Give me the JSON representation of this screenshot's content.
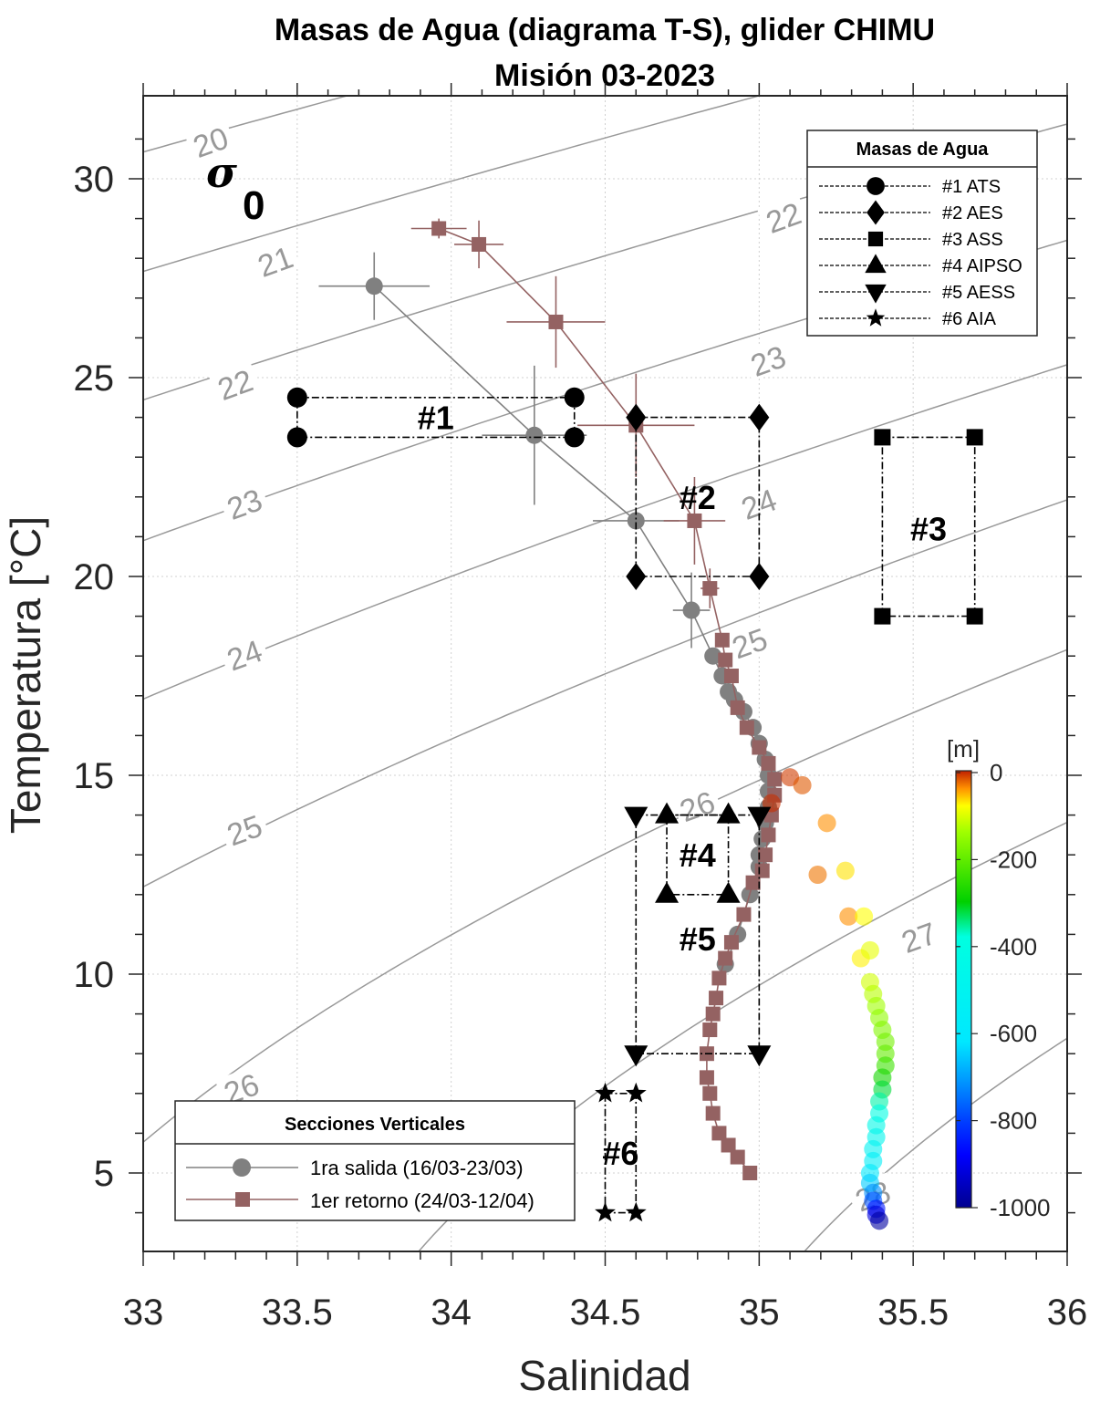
{
  "chart_data": {
    "type": "scatter",
    "title": "Masas de Agua (diagrama T-S), glider CHIMU",
    "subtitle": "Misión 03-2023",
    "xlabel": "Salinidad",
    "ylabel": "Temperatura [°C]",
    "xlim": [
      33,
      36
    ],
    "ylim": [
      3.3,
      32
    ],
    "xticks": [
      33,
      33.5,
      34,
      34.5,
      35,
      35.5,
      36
    ],
    "xtick_labels": [
      "33",
      "33.5",
      "34",
      "34.5",
      "35",
      "35.5",
      "36"
    ],
    "yticks": [
      5,
      10,
      15,
      20,
      25,
      30
    ],
    "ytick_labels": [
      "5",
      "10",
      "15",
      "20",
      "25",
      "30"
    ],
    "grid": true,
    "sigma_label": {
      "symbol": "σ",
      "subscript": "0"
    },
    "isopycnals": {
      "values": [
        20,
        21,
        22,
        23,
        24,
        25,
        26,
        27,
        28
      ],
      "labels": [
        {
          "text": "20",
          "s": 33.22,
          "t": 30.9
        },
        {
          "text": "21",
          "s": 33.43,
          "t": 27.9
        },
        {
          "text": "22",
          "s": 33.3,
          "t": 24.8
        },
        {
          "text": "23",
          "s": 33.33,
          "t": 21.8
        },
        {
          "text": "24",
          "s": 33.33,
          "t": 18.0
        },
        {
          "text": "25",
          "s": 33.33,
          "t": 13.6
        },
        {
          "text": "26",
          "s": 33.32,
          "t": 7.1
        },
        {
          "text": "22",
          "s": 35.08,
          "t": 29.0
        },
        {
          "text": "23",
          "s": 35.03,
          "t": 25.4
        },
        {
          "text": "24",
          "s": 35.0,
          "t": 21.8
        },
        {
          "text": "25",
          "s": 34.97,
          "t": 18.3
        },
        {
          "text": "26",
          "s": 34.8,
          "t": 14.2
        },
        {
          "text": "27",
          "s": 35.52,
          "t": 10.9
        },
        {
          "text": "28",
          "s": 35.37,
          "t": 4.4
        }
      ]
    },
    "water_masses": {
      "title": "Masas de Agua",
      "items": [
        {
          "id": "#1",
          "name": "ATS",
          "label": "#1 ATS",
          "marker": "circle",
          "s_range": [
            33.5,
            34.4
          ],
          "t_range": [
            23.5,
            24.5
          ],
          "label_pos": [
            33.95,
            24.0
          ]
        },
        {
          "id": "#2",
          "name": "AES",
          "label": "#2 AES",
          "marker": "diamond",
          "s_range": [
            34.6,
            35.0
          ],
          "t_range": [
            20.0,
            24.0
          ],
          "label_pos": [
            34.8,
            22.0
          ]
        },
        {
          "id": "#3",
          "name": "ASS",
          "label": "#3 ASS",
          "marker": "square",
          "s_range": [
            35.4,
            35.7
          ],
          "t_range": [
            19.0,
            23.5
          ],
          "label_pos": [
            35.55,
            21.2
          ]
        },
        {
          "id": "#4",
          "name": "AIPSO",
          "label": "#4 AIPSO",
          "marker": "triangle-up",
          "s_range": [
            34.7,
            34.9
          ],
          "t_range": [
            12.0,
            14.0
          ],
          "label_pos": [
            34.8,
            13.0
          ]
        },
        {
          "id": "#5",
          "name": "AESS",
          "label": "#5 AESS",
          "marker": "triangle-down",
          "s_range": [
            34.6,
            35.0
          ],
          "t_range": [
            8.0,
            14.0
          ],
          "label_pos": [
            34.8,
            10.9
          ]
        },
        {
          "id": "#6",
          "name": "AIA",
          "label": "#6 AIA",
          "marker": "star",
          "s_range": [
            34.5,
            34.6
          ],
          "t_range": [
            4.0,
            7.0
          ],
          "label_pos": [
            34.55,
            5.5
          ]
        }
      ]
    },
    "series": [
      {
        "name": "1ra salida (16/03-23/03)",
        "color": "#808080",
        "marker": "circle",
        "points": [
          {
            "s": 33.75,
            "t": 27.3,
            "s_err": 0.18,
            "t_err": 0.85
          },
          {
            "s": 34.27,
            "t": 23.55,
            "s_err": 0.17,
            "t_err": 1.75
          },
          {
            "s": 34.6,
            "t": 21.4,
            "s_err": 0.14,
            "t_err": 0.0
          },
          {
            "s": 34.78,
            "t": 19.15,
            "s_err": 0.06,
            "t_err": 0.95
          },
          {
            "s": 34.85,
            "t": 18.0
          },
          {
            "s": 34.88,
            "t": 17.5
          },
          {
            "s": 34.9,
            "t": 17.1
          },
          {
            "s": 34.92,
            "t": 16.9
          },
          {
            "s": 34.95,
            "t": 16.6
          },
          {
            "s": 34.98,
            "t": 16.2
          },
          {
            "s": 35.0,
            "t": 15.8
          },
          {
            "s": 35.02,
            "t": 15.4
          },
          {
            "s": 35.03,
            "t": 15.0
          },
          {
            "s": 35.03,
            "t": 14.6
          },
          {
            "s": 35.03,
            "t": 14.2
          },
          {
            "s": 35.02,
            "t": 13.8
          },
          {
            "s": 35.01,
            "t": 13.4
          },
          {
            "s": 35.0,
            "t": 13.0
          },
          {
            "s": 35.0,
            "t": 12.7
          },
          {
            "s": 34.97,
            "t": 12.0
          },
          {
            "s": 34.93,
            "t": 11.0
          },
          {
            "s": 34.89,
            "t": 10.25
          }
        ]
      },
      {
        "name": "1er retorno (24/03-12/04)",
        "color": "#946262",
        "marker": "square",
        "points": [
          {
            "s": 33.96,
            "t": 28.75,
            "s_err": 0.09,
            "t_err": 0.25
          },
          {
            "s": 34.09,
            "t": 28.35,
            "s_err": 0.08,
            "t_err": 0.6
          },
          {
            "s": 34.34,
            "t": 26.4,
            "s_err": 0.16,
            "t_err": 1.15
          },
          {
            "s": 34.6,
            "t": 23.8,
            "s_err": 0.19,
            "t_err": 1.3
          },
          {
            "s": 34.79,
            "t": 21.4,
            "s_err": 0.1,
            "t_err": 1.1
          },
          {
            "s": 34.84,
            "t": 19.7,
            "s_err": 0.03,
            "t_err": 0.5
          },
          {
            "s": 34.88,
            "t": 18.4
          },
          {
            "s": 34.89,
            "t": 17.9
          },
          {
            "s": 34.91,
            "t": 17.5
          },
          {
            "s": 34.93,
            "t": 16.7
          },
          {
            "s": 34.96,
            "t": 16.2
          },
          {
            "s": 35.0,
            "t": 15.7
          },
          {
            "s": 35.03,
            "t": 15.3
          },
          {
            "s": 35.05,
            "t": 14.9
          },
          {
            "s": 35.05,
            "t": 14.5
          },
          {
            "s": 35.04,
            "t": 14.0
          },
          {
            "s": 35.03,
            "t": 13.5
          },
          {
            "s": 35.02,
            "t": 13.0
          },
          {
            "s": 35.01,
            "t": 12.6
          },
          {
            "s": 34.98,
            "t": 12.3
          },
          {
            "s": 34.95,
            "t": 11.5
          },
          {
            "s": 34.91,
            "t": 10.8
          },
          {
            "s": 34.89,
            "t": 10.4
          },
          {
            "s": 34.87,
            "t": 9.9
          },
          {
            "s": 34.86,
            "t": 9.4
          },
          {
            "s": 34.85,
            "t": 9.0
          },
          {
            "s": 34.84,
            "t": 8.6
          },
          {
            "s": 34.83,
            "t": 8.0
          },
          {
            "s": 34.83,
            "t": 7.4
          },
          {
            "s": 34.84,
            "t": 7.0
          },
          {
            "s": 34.85,
            "t": 6.5
          },
          {
            "s": 34.87,
            "t": 6.0
          },
          {
            "s": 34.9,
            "t": 5.7
          },
          {
            "s": 34.93,
            "t": 5.4
          },
          {
            "s": 34.97,
            "t": 5.0
          }
        ]
      }
    ],
    "depth_series": {
      "name": "profile colored by depth",
      "points": [
        {
          "s": 35.1,
          "t": 14.95,
          "d": -10
        },
        {
          "s": 35.14,
          "t": 14.75,
          "d": -20
        },
        {
          "s": 35.04,
          "t": 14.3,
          "d": -5
        },
        {
          "s": 35.22,
          "t": 13.8,
          "d": -40
        },
        {
          "s": 35.19,
          "t": 12.5,
          "d": -30
        },
        {
          "s": 35.28,
          "t": 12.6,
          "d": -70
        },
        {
          "s": 35.29,
          "t": 11.45,
          "d": -40
        },
        {
          "s": 35.34,
          "t": 11.45,
          "d": -80
        },
        {
          "s": 35.33,
          "t": 10.4,
          "d": -75
        },
        {
          "s": 35.36,
          "t": 10.6,
          "d": -95
        },
        {
          "s": 35.36,
          "t": 9.8,
          "d": -110
        },
        {
          "s": 35.37,
          "t": 9.5,
          "d": -125
        },
        {
          "s": 35.38,
          "t": 9.2,
          "d": -140
        },
        {
          "s": 35.39,
          "t": 8.9,
          "d": -155
        },
        {
          "s": 35.4,
          "t": 8.6,
          "d": -170
        },
        {
          "s": 35.41,
          "t": 8.3,
          "d": -185
        },
        {
          "s": 35.41,
          "t": 8.0,
          "d": -200
        },
        {
          "s": 35.41,
          "t": 7.7,
          "d": -240
        },
        {
          "s": 35.4,
          "t": 7.4,
          "d": -280
        },
        {
          "s": 35.4,
          "t": 7.1,
          "d": -320
        },
        {
          "s": 35.39,
          "t": 6.8,
          "d": -360
        },
        {
          "s": 35.39,
          "t": 6.5,
          "d": -400
        },
        {
          "s": 35.38,
          "t": 6.2,
          "d": -440
        },
        {
          "s": 35.38,
          "t": 5.9,
          "d": -480
        },
        {
          "s": 35.37,
          "t": 5.6,
          "d": -520
        },
        {
          "s": 35.37,
          "t": 5.3,
          "d": -560
        },
        {
          "s": 35.36,
          "t": 5.0,
          "d": -600
        },
        {
          "s": 35.36,
          "t": 4.75,
          "d": -650
        },
        {
          "s": 35.37,
          "t": 4.5,
          "d": -720
        },
        {
          "s": 35.37,
          "t": 4.3,
          "d": -780
        },
        {
          "s": 35.38,
          "t": 4.1,
          "d": -850
        },
        {
          "s": 35.38,
          "t": 3.95,
          "d": -920
        },
        {
          "s": 35.39,
          "t": 3.8,
          "d": -980
        }
      ]
    },
    "colorbar": {
      "label": "[m]",
      "range": [
        -1000,
        0
      ],
      "ticks": [
        0,
        -200,
        -400,
        -600,
        -800,
        -1000
      ],
      "tick_labels": [
        "0",
        "-200",
        "-400",
        "-600",
        "-800",
        "-1000"
      ],
      "colormap": "jet"
    },
    "legend_sections": {
      "title": "Secciones Verticales",
      "items": [
        "1ra salida (16/03-23/03)",
        "1er retorno (24/03-12/04)"
      ],
      "placement": "bottom-left"
    },
    "legend_masses_placement": "top-right"
  }
}
